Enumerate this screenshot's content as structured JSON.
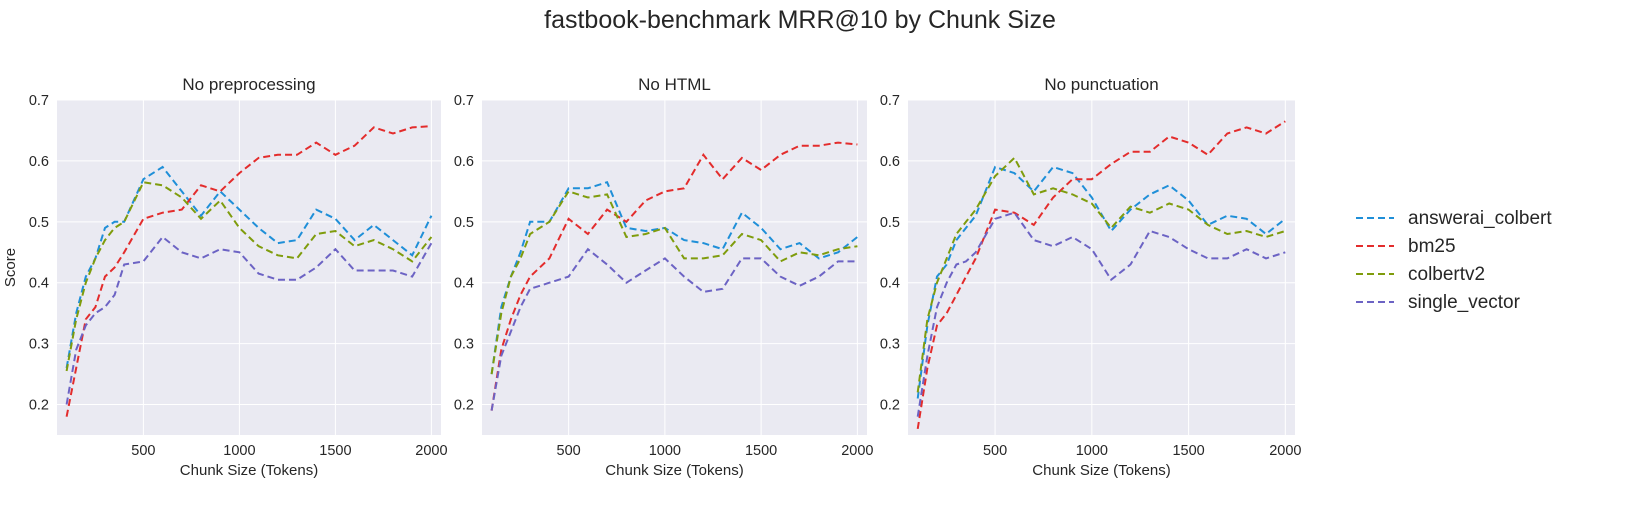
{
  "title": "fastbook-benchmark MRR@10 by Chunk Size",
  "colors": {
    "answerai_colbert": "#1f8fd8",
    "bm25": "#e32c2c",
    "colbertv2": "#7f9c0c",
    "single_vector": "#6c63c4"
  },
  "legend": {
    "placement": "right",
    "entries": [
      "answerai_colbert",
      "bm25",
      "colbertv2",
      "single_vector"
    ]
  },
  "chart_data": [
    {
      "type": "line",
      "title": "No preprocessing",
      "xlabel": "Chunk Size (Tokens)",
      "ylabel": "Score",
      "xlim": [
        50,
        2050
      ],
      "ylim": [
        0.15,
        0.7
      ],
      "xticks": [
        500,
        1000,
        1500,
        2000
      ],
      "yticks": [
        0.2,
        0.3,
        0.4,
        0.5,
        0.6,
        0.7
      ],
      "grid": true,
      "x": [
        100,
        150,
        200,
        250,
        300,
        350,
        400,
        500,
        600,
        700,
        800,
        900,
        1000,
        1100,
        1200,
        1300,
        1400,
        1500,
        1600,
        1700,
        1800,
        1900,
        2000
      ],
      "series": [
        {
          "name": "answerai_colbert",
          "values": [
            0.26,
            0.35,
            0.41,
            0.44,
            0.49,
            0.5,
            0.5,
            0.57,
            0.59,
            0.55,
            0.51,
            0.55,
            0.52,
            0.49,
            0.465,
            0.47,
            0.52,
            0.505,
            0.47,
            0.495,
            0.47,
            0.445,
            0.51
          ]
        },
        {
          "name": "bm25",
          "values": [
            0.18,
            0.26,
            0.34,
            0.36,
            0.41,
            0.425,
            0.45,
            0.505,
            0.515,
            0.52,
            0.56,
            0.55,
            0.58,
            0.605,
            0.61,
            0.61,
            0.63,
            0.61,
            0.625,
            0.655,
            0.645,
            0.655,
            0.657
          ]
        },
        {
          "name": "colbertv2",
          "values": [
            0.255,
            0.34,
            0.4,
            0.44,
            0.47,
            0.49,
            0.5,
            0.565,
            0.56,
            0.54,
            0.505,
            0.535,
            0.49,
            0.46,
            0.445,
            0.44,
            0.48,
            0.485,
            0.46,
            0.47,
            0.455,
            0.435,
            0.475
          ]
        },
        {
          "name": "single_vector",
          "values": [
            0.2,
            0.29,
            0.33,
            0.35,
            0.36,
            0.38,
            0.43,
            0.435,
            0.475,
            0.45,
            0.44,
            0.455,
            0.45,
            0.415,
            0.405,
            0.405,
            0.425,
            0.455,
            0.42,
            0.42,
            0.42,
            0.41,
            0.465
          ]
        }
      ]
    },
    {
      "type": "line",
      "title": "No HTML",
      "xlabel": "Chunk Size (Tokens)",
      "ylabel": "",
      "xlim": [
        50,
        2050
      ],
      "ylim": [
        0.15,
        0.7
      ],
      "xticks": [
        500,
        1000,
        1500,
        2000
      ],
      "yticks": [
        0.2,
        0.3,
        0.4,
        0.5,
        0.6,
        0.7
      ],
      "grid": true,
      "x": [
        100,
        150,
        200,
        250,
        300,
        350,
        400,
        500,
        600,
        700,
        800,
        900,
        1000,
        1100,
        1200,
        1300,
        1400,
        1500,
        1600,
        1700,
        1800,
        1900,
        2000
      ],
      "series": [
        {
          "name": "answerai_colbert",
          "values": [
            0.25,
            0.36,
            0.41,
            0.45,
            0.5,
            0.5,
            0.5,
            0.555,
            0.555,
            0.565,
            0.49,
            0.485,
            0.49,
            0.47,
            0.465,
            0.455,
            0.515,
            0.49,
            0.455,
            0.465,
            0.44,
            0.45,
            0.475
          ]
        },
        {
          "name": "bm25",
          "values": [
            0.19,
            0.29,
            0.34,
            0.38,
            0.41,
            0.425,
            0.44,
            0.505,
            0.48,
            0.52,
            0.5,
            0.535,
            0.55,
            0.555,
            0.61,
            0.57,
            0.605,
            0.585,
            0.61,
            0.625,
            0.625,
            0.63,
            0.627
          ]
        },
        {
          "name": "colbertv2",
          "values": [
            0.25,
            0.35,
            0.41,
            0.44,
            0.48,
            0.49,
            0.5,
            0.55,
            0.54,
            0.545,
            0.475,
            0.48,
            0.49,
            0.44,
            0.44,
            0.445,
            0.48,
            0.47,
            0.435,
            0.45,
            0.445,
            0.455,
            0.46
          ]
        },
        {
          "name": "single_vector",
          "values": [
            0.19,
            0.28,
            0.32,
            0.36,
            0.39,
            0.395,
            0.4,
            0.41,
            0.455,
            0.43,
            0.4,
            0.42,
            0.44,
            0.41,
            0.385,
            0.39,
            0.44,
            0.44,
            0.41,
            0.395,
            0.41,
            0.435,
            0.435
          ]
        }
      ]
    },
    {
      "type": "line",
      "title": "No punctuation",
      "xlabel": "Chunk Size (Tokens)",
      "ylabel": "",
      "xlim": [
        50,
        2050
      ],
      "ylim": [
        0.15,
        0.7
      ],
      "xticks": [
        500,
        1000,
        1500,
        2000
      ],
      "yticks": [
        0.2,
        0.3,
        0.4,
        0.5,
        0.6,
        0.7
      ],
      "grid": true,
      "x": [
        100,
        150,
        200,
        250,
        300,
        350,
        400,
        500,
        600,
        700,
        800,
        900,
        1000,
        1100,
        1200,
        1300,
        1400,
        1500,
        1600,
        1700,
        1800,
        1900,
        2000
      ],
      "series": [
        {
          "name": "answerai_colbert",
          "values": [
            0.21,
            0.33,
            0.41,
            0.43,
            0.47,
            0.49,
            0.51,
            0.59,
            0.58,
            0.55,
            0.59,
            0.58,
            0.54,
            0.485,
            0.52,
            0.545,
            0.56,
            0.535,
            0.495,
            0.51,
            0.505,
            0.48,
            0.505
          ]
        },
        {
          "name": "bm25",
          "values": [
            0.16,
            0.26,
            0.33,
            0.35,
            0.38,
            0.41,
            0.44,
            0.52,
            0.515,
            0.495,
            0.54,
            0.57,
            0.57,
            0.595,
            0.615,
            0.615,
            0.64,
            0.63,
            0.61,
            0.645,
            0.655,
            0.645,
            0.665
          ]
        },
        {
          "name": "colbertv2",
          "values": [
            0.22,
            0.34,
            0.4,
            0.44,
            0.48,
            0.5,
            0.52,
            0.575,
            0.605,
            0.545,
            0.555,
            0.545,
            0.53,
            0.49,
            0.525,
            0.515,
            0.53,
            0.52,
            0.495,
            0.48,
            0.485,
            0.475,
            0.485
          ]
        },
        {
          "name": "single_vector",
          "values": [
            0.18,
            0.28,
            0.36,
            0.4,
            0.43,
            0.435,
            0.45,
            0.505,
            0.515,
            0.47,
            0.46,
            0.475,
            0.455,
            0.405,
            0.43,
            0.485,
            0.475,
            0.455,
            0.44,
            0.44,
            0.455,
            0.44,
            0.45
          ]
        }
      ]
    }
  ]
}
